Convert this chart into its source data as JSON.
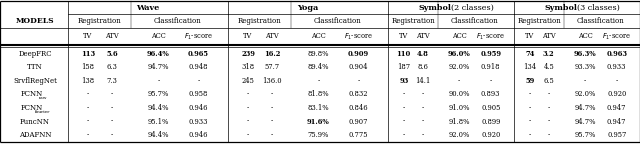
{
  "rows": [
    {
      "model": "DeepFRC",
      "sub": null,
      "data": [
        "113",
        "5.6",
        "96.4%",
        "0.965",
        "239",
        "16.2",
        "89.8%",
        "0.909",
        "110",
        "4.8",
        "96.0%",
        "0.959",
        "74",
        "3.2",
        "96.3%",
        "0.963"
      ],
      "bold": [
        true,
        true,
        true,
        true,
        true,
        true,
        false,
        true,
        true,
        true,
        true,
        true,
        true,
        true,
        true,
        true
      ]
    },
    {
      "model": "TTN",
      "sub": null,
      "data": [
        "158",
        "6.3",
        "94.7%",
        "0.948",
        "318",
        "57.7",
        "89.4%",
        "0.904",
        "187",
        "8.6",
        "92.0%",
        "0.918",
        "134",
        "4.5",
        "93.3%",
        "0.933"
      ],
      "bold": [
        false,
        false,
        false,
        false,
        false,
        false,
        false,
        false,
        false,
        false,
        false,
        false,
        false,
        false,
        false,
        false
      ]
    },
    {
      "model": "SrvflRegNet",
      "sub": null,
      "data": [
        "138",
        "7.3",
        "-",
        "-",
        "245",
        "136.0",
        "-",
        "-",
        "93",
        "14.1",
        "-",
        "-",
        "59",
        "6.5",
        "-",
        "-"
      ],
      "bold": [
        false,
        false,
        false,
        false,
        false,
        false,
        false,
        false,
        true,
        false,
        false,
        false,
        true,
        false,
        false,
        false
      ]
    },
    {
      "model": "FCNN",
      "sub": "raw",
      "data": [
        "-",
        "-",
        "95.7%",
        "0.958",
        "-",
        "-",
        "81.8%",
        "0.832",
        "-",
        "-",
        "90.0%",
        "0.893",
        "-",
        "-",
        "92.0%",
        "0.920"
      ],
      "bold": [
        false,
        false,
        false,
        false,
        false,
        false,
        false,
        false,
        false,
        false,
        false,
        false,
        false,
        false,
        false,
        false
      ]
    },
    {
      "model": "FCNN",
      "sub": "fourier",
      "data": [
        "-",
        "-",
        "94.4%",
        "0.946",
        "-",
        "-",
        "83.1%",
        "0.846",
        "-",
        "-",
        "91.0%",
        "0.905",
        "-",
        "-",
        "94.7%",
        "0.947"
      ],
      "bold": [
        false,
        false,
        false,
        false,
        false,
        false,
        false,
        false,
        false,
        false,
        false,
        false,
        false,
        false,
        false,
        false
      ]
    },
    {
      "model": "FuncNN",
      "sub": null,
      "data": [
        "-",
        "-",
        "95.1%",
        "0.933",
        "-",
        "-",
        "91.6%",
        "0.907",
        "-",
        "-",
        "91.8%",
        "0.899",
        "-",
        "-",
        "94.7%",
        "0.947"
      ],
      "bold": [
        false,
        false,
        false,
        false,
        false,
        false,
        true,
        false,
        false,
        false,
        false,
        false,
        false,
        false,
        false,
        false
      ]
    },
    {
      "model": "ADAFNN",
      "sub": null,
      "data": [
        "-",
        "-",
        "94.4%",
        "0.946",
        "-",
        "-",
        "75.9%",
        "0.775",
        "-",
        "-",
        "92.0%",
        "0.920",
        "-",
        "-",
        "95.7%",
        "0.957"
      ],
      "bold": [
        false,
        false,
        false,
        false,
        false,
        false,
        false,
        false,
        false,
        false,
        false,
        false,
        false,
        false,
        false,
        false
      ]
    }
  ],
  "fig_width": 6.4,
  "fig_height": 1.55,
  "dpi": 100,
  "background": "#ffffff"
}
